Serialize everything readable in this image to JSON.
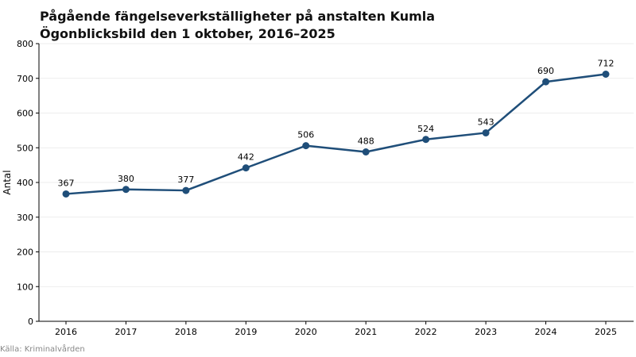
{
  "title_line1": "Pågående fängelseverkställigheter på anstalten Kumla",
  "title_line2": "Ögonblicksbild den 1 oktober, 2016–2025",
  "source": "Källa: Kriminalvården",
  "colors": {
    "line": "#1f4e79",
    "grid": "#e6e6e6",
    "axis": "#000000"
  },
  "chart_data": {
    "type": "line",
    "title": "Pågående fängelseverkställigheter på anstalten Kumla",
    "subtitle": "Ögonblicksbild den 1 oktober, 2016–2025",
    "xlabel": "",
    "ylabel": "Antal",
    "ylim": [
      0,
      800
    ],
    "yticks": [
      0,
      100,
      200,
      300,
      400,
      500,
      600,
      700,
      800
    ],
    "grid": true,
    "categories": [
      "2016",
      "2017",
      "2018",
      "2019",
      "2020",
      "2021",
      "2022",
      "2023",
      "2024",
      "2025"
    ],
    "values": [
      367,
      380,
      377,
      442,
      506,
      488,
      524,
      543,
      690,
      712
    ]
  }
}
